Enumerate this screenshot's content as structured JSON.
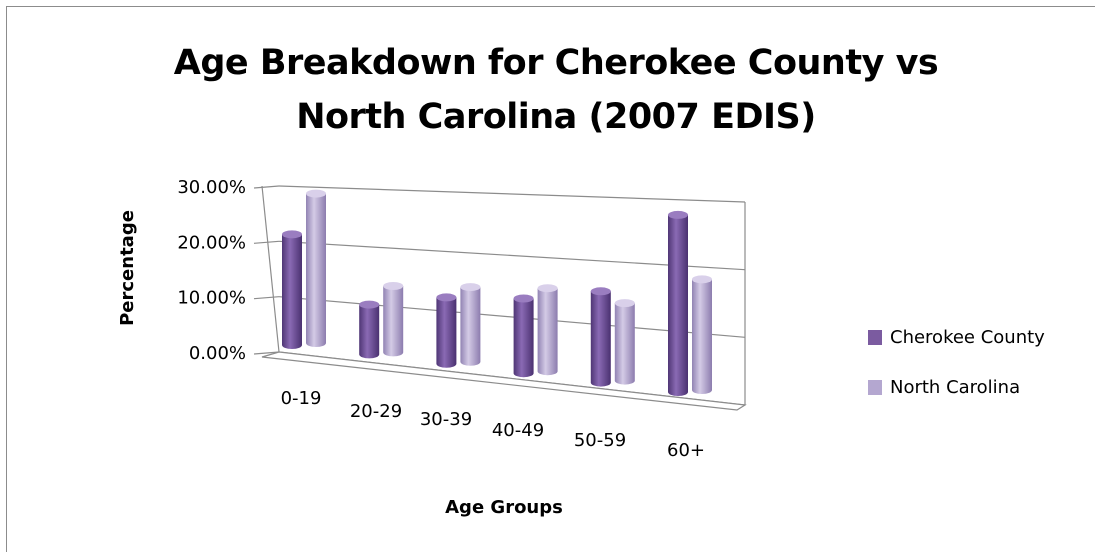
{
  "chart_data": {
    "type": "bar",
    "title_lines": [
      "Age Breakdown for Cherokee County vs",
      "North Carolina (2007 EDIS)"
    ],
    "xlabel": "Age Groups",
    "ylabel": "Percentage",
    "categories": [
      "0-19",
      "20-29",
      "30-39",
      "40-49",
      "50-59",
      "60+"
    ],
    "y_ticks": [
      "0.00%",
      "10.00%",
      "20.00%",
      "30.00%"
    ],
    "ylim": [
      0,
      30
    ],
    "series": [
      {
        "name": "Cherokee County",
        "values": [
          20.0,
          9.0,
          12.0,
          13.5,
          16.5,
          32.0
        ],
        "color": "#7b5ba0"
      },
      {
        "name": "North Carolina",
        "values": [
          27.0,
          12.0,
          13.5,
          15.0,
          14.0,
          20.0
        ],
        "color": "#b4a7d0"
      }
    ],
    "grid": true,
    "legend_position": "right",
    "style": "3d-cylinder"
  }
}
